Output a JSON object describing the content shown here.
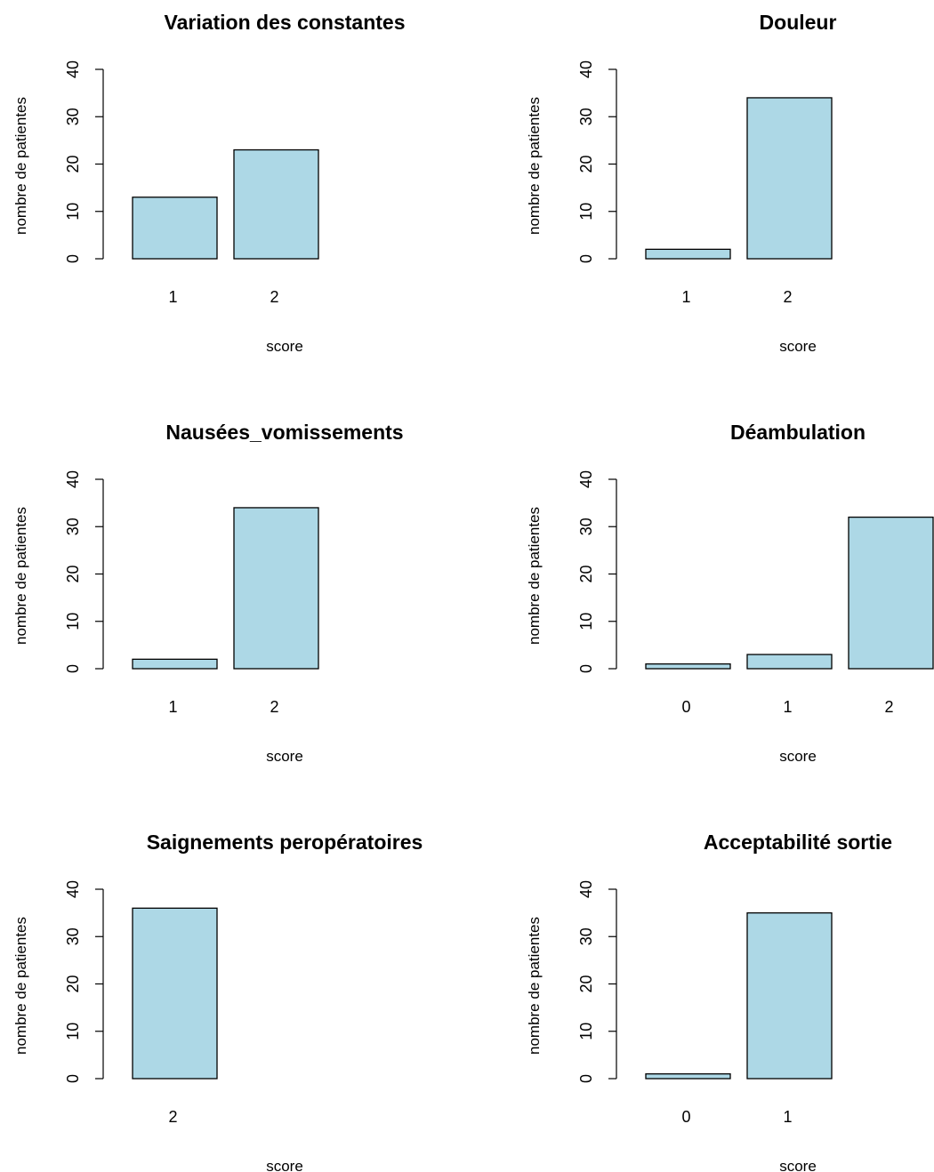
{
  "chart_data": [
    {
      "type": "bar",
      "title": "Variation des constantes",
      "xlabel": "score",
      "ylabel": "nombre de patientes",
      "categories": [
        "1",
        "2"
      ],
      "values": [
        13,
        23
      ],
      "ylim": [
        0,
        40
      ],
      "yticks": [
        "0",
        "10",
        "20",
        "30",
        "40"
      ],
      "bar_color": "#add8e6",
      "grid": false
    },
    {
      "type": "bar",
      "title": "Douleur",
      "xlabel": "score",
      "ylabel": "nombre de patientes",
      "categories": [
        "1",
        "2"
      ],
      "values": [
        2,
        34
      ],
      "ylim": [
        0,
        40
      ],
      "yticks": [
        "0",
        "10",
        "20",
        "30",
        "40"
      ],
      "bar_color": "#add8e6",
      "grid": false
    },
    {
      "type": "bar",
      "title": "Nausées_vomissements",
      "xlabel": "score",
      "ylabel": "nombre de patientes",
      "categories": [
        "1",
        "2"
      ],
      "values": [
        2,
        34
      ],
      "ylim": [
        0,
        40
      ],
      "yticks": [
        "0",
        "10",
        "20",
        "30",
        "40"
      ],
      "bar_color": "#add8e6",
      "grid": false
    },
    {
      "type": "bar",
      "title": "Déambulation",
      "xlabel": "score",
      "ylabel": "nombre de patientes",
      "categories": [
        "0",
        "1",
        "2"
      ],
      "values": [
        1,
        3,
        32
      ],
      "ylim": [
        0,
        40
      ],
      "yticks": [
        "0",
        "10",
        "20",
        "30",
        "40"
      ],
      "bar_color": "#add8e6",
      "grid": false
    },
    {
      "type": "bar",
      "title": "Saignements peropératoires",
      "xlabel": "score",
      "ylabel": "nombre de patientes",
      "categories": [
        "2"
      ],
      "values": [
        36
      ],
      "ylim": [
        0,
        40
      ],
      "yticks": [
        "0",
        "10",
        "20",
        "30",
        "40"
      ],
      "bar_color": "#add8e6",
      "grid": false
    },
    {
      "type": "bar",
      "title": "Acceptabilité sortie",
      "xlabel": "score",
      "ylabel": "nombre de patientes",
      "categories": [
        "0",
        "1"
      ],
      "values": [
        1,
        35
      ],
      "ylim": [
        0,
        40
      ],
      "yticks": [
        "0",
        "10",
        "20",
        "30",
        "40"
      ],
      "bar_color": "#add8e6",
      "grid": false
    }
  ]
}
